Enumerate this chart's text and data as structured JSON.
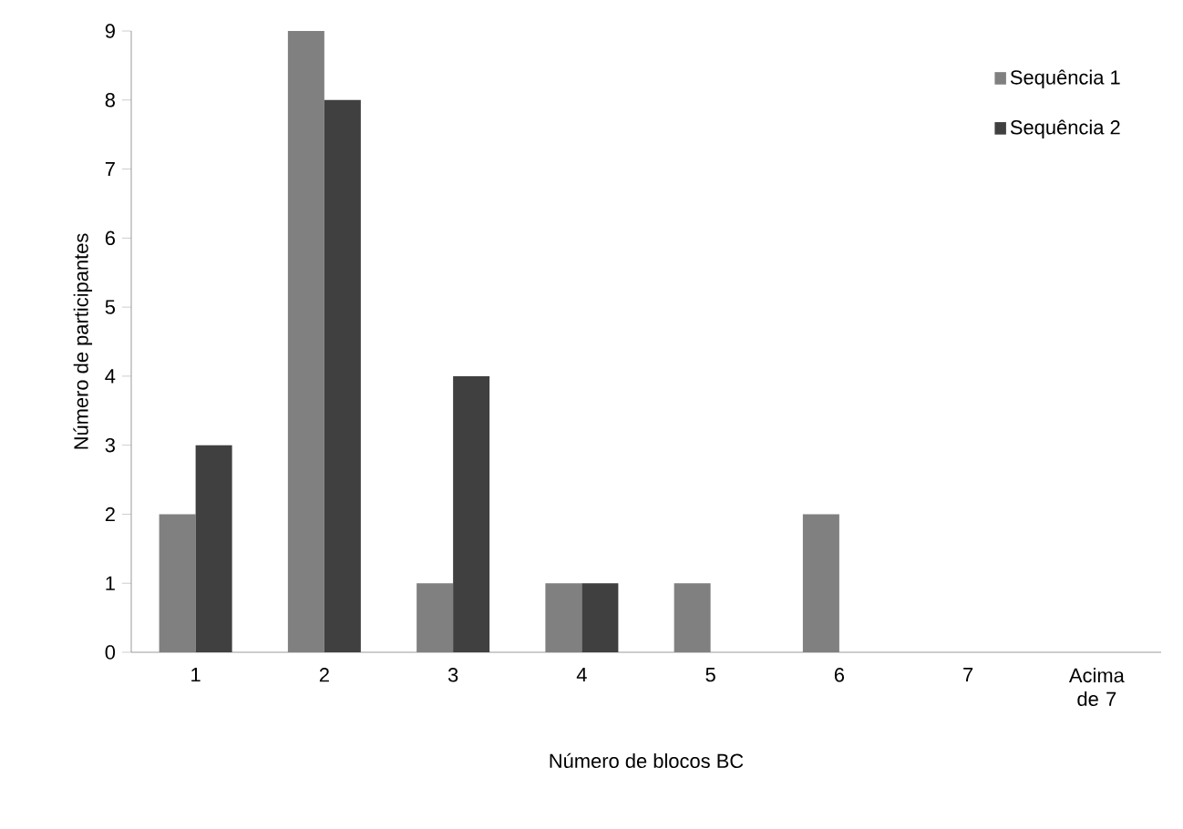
{
  "chart_data": {
    "type": "bar",
    "xlabel": "Número de blocos BC",
    "ylabel": "Número de participantes",
    "categories": [
      "1",
      "2",
      "3",
      "4",
      "5",
      "6",
      "7",
      "Acima de 7"
    ],
    "series": [
      {
        "name": "Sequência 1",
        "color": "#808080",
        "values": [
          2,
          9,
          1,
          1,
          1,
          2,
          0,
          0
        ]
      },
      {
        "name": "Sequência 2",
        "color": "#404040",
        "values": [
          3,
          8,
          4,
          1,
          0,
          0,
          0,
          0
        ]
      }
    ],
    "ylim": [
      0,
      9
    ],
    "yticks": [
      0,
      1,
      2,
      3,
      4,
      5,
      6,
      7,
      8,
      9
    ],
    "grid": false,
    "legend": "top right"
  }
}
